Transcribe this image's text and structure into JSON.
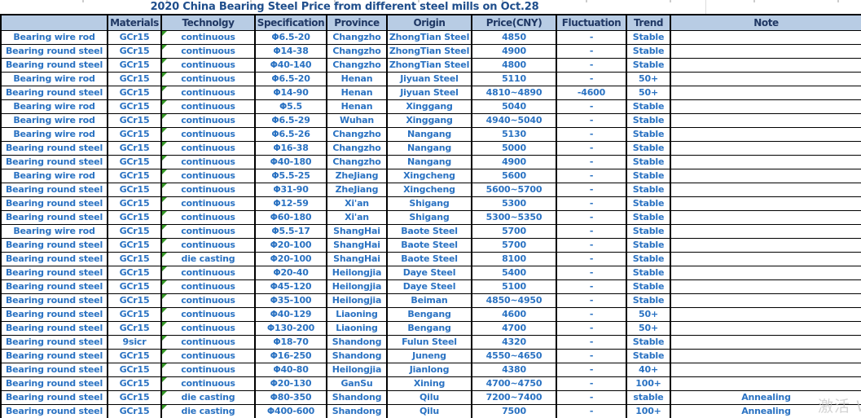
{
  "title": "2020 China Bearing Steel Price from different steel mills on  Oct.28",
  "watermark": "激活 W",
  "colors": {
    "title_text": "#1f4e8c",
    "header_bg": "#b8cce4",
    "header_text": "#203864",
    "data_text": "#2a72c2",
    "border": "#000000",
    "error_triangle": "#379a28"
  },
  "table": {
    "columns": [
      {
        "key": "product",
        "label": ""
      },
      {
        "key": "materials",
        "label": "Materials"
      },
      {
        "key": "technology",
        "label": "Technolgy"
      },
      {
        "key": "specification",
        "label": "Specification"
      },
      {
        "key": "province",
        "label": "Province"
      },
      {
        "key": "origin",
        "label": "Origin"
      },
      {
        "key": "price",
        "label": "Price(CNY)"
      },
      {
        "key": "fluctuation",
        "label": "Fluctuation"
      },
      {
        "key": "trend",
        "label": "Trend"
      },
      {
        "key": "note",
        "label": "Note"
      }
    ],
    "rows": [
      [
        "Bearing wire rod",
        "GCr15",
        "continuous",
        "Φ6.5-20",
        "Changzho",
        "ZhongTian Steel",
        "4850",
        "-",
        "Stable",
        ""
      ],
      [
        "Bearing round steel",
        "GCr15",
        "continuous",
        "Φ14-38",
        "Changzho",
        "ZhongTian Steel",
        "4900",
        "-",
        "Stable",
        ""
      ],
      [
        "Bearing round steel",
        "GCr15",
        "continuous",
        "Φ40-140",
        "Changzho",
        "ZhongTian Steel",
        "4800",
        "-",
        "Stable",
        ""
      ],
      [
        "Bearing wire rod",
        "GCr15",
        "continuous",
        "Φ6.5-20",
        "Henan",
        "Jiyuan Steel",
        "5110",
        "-",
        "50+",
        ""
      ],
      [
        "Bearing round steel",
        "GCr15",
        "continuous",
        "Φ14-90",
        "Henan",
        "Jiyuan Steel",
        "4810~4890",
        "-4600",
        "50+",
        ""
      ],
      [
        "Bearing wire rod",
        "GCr15",
        "continuous",
        "Φ5.5",
        "Henan",
        "Xinggang",
        "5040",
        "-",
        "Stable",
        ""
      ],
      [
        "Bearing wire rod",
        "GCr15",
        "continuous",
        "Φ6.5-29",
        "Wuhan",
        "Xinggang",
        "4940~5040",
        "-",
        "Stable",
        ""
      ],
      [
        "Bearing wire rod",
        "GCr15",
        "continuous",
        "Φ6.5-26",
        "Changzho",
        "Nangang",
        "5130",
        "-",
        "Stable",
        ""
      ],
      [
        "Bearing round steel",
        "GCr15",
        "continuous",
        "Φ16-38",
        "Changzho",
        "Nangang",
        "5000",
        "-",
        "Stable",
        ""
      ],
      [
        "Bearing round steel",
        "GCr15",
        "continuous",
        "Φ40-180",
        "Changzho",
        "Nangang",
        "4900",
        "-",
        "Stable",
        ""
      ],
      [
        "Bearing wire rod",
        "GCr15",
        "continuous",
        "Φ5.5-25",
        "ZheJiang",
        "Xingcheng",
        "5600",
        "-",
        "Stable",
        ""
      ],
      [
        "Bearing round steel",
        "GCr15",
        "continuous",
        "Φ31-90",
        "ZheJiang",
        "Xingcheng",
        "5600~5700",
        "-",
        "Stable",
        ""
      ],
      [
        "Bearing round steel",
        "GCr15",
        "continuous",
        "Φ12-59",
        "Xi'an",
        "Shigang",
        "5300",
        "-",
        "Stable",
        ""
      ],
      [
        "Bearing round steel",
        "GCr15",
        "continuous",
        "Φ60-180",
        "Xi'an",
        "Shigang",
        "5300~5350",
        "-",
        "Stable",
        ""
      ],
      [
        "Bearing wire rod",
        "GCr15",
        "continuous",
        "Φ5.5-17",
        "ShangHai",
        "Baote Steel",
        "5700",
        "-",
        "Stable",
        ""
      ],
      [
        "Bearing round steel",
        "GCr15",
        "continuous",
        "Φ20-100",
        "ShangHai",
        "Baote Steel",
        "5700",
        "-",
        "Stable",
        ""
      ],
      [
        "Bearing round steel",
        "GCr15",
        "die casting",
        "Φ20-100",
        "ShangHai",
        "Baote Steel",
        "8100",
        "-",
        "Stable",
        ""
      ],
      [
        "Bearing round steel",
        "GCr15",
        "continuous",
        "Φ20-40",
        "Heilongjia",
        "Daye Steel",
        "5400",
        "-",
        "Stable",
        ""
      ],
      [
        "Bearing round steel",
        "GCr15",
        "continuous",
        "Φ45-120",
        "Heilongjia",
        "Daye Steel",
        "5100",
        "-",
        "Stable",
        ""
      ],
      [
        "Bearing round steel",
        "GCr15",
        "continuous",
        "Φ35-100",
        "Heilongjia",
        "Beiman",
        "4850~4950",
        "-",
        "Stable",
        ""
      ],
      [
        "Bearing round steel",
        "GCr15",
        "continuous",
        "Φ40-129",
        "Liaoning",
        "Bengang",
        "4600",
        "-",
        "50+",
        ""
      ],
      [
        "Bearing round steel",
        "GCr15",
        "continuous",
        "Φ130-200",
        "Liaoning",
        "Bengang",
        "4700",
        "-",
        "50+",
        ""
      ],
      [
        "Bearing round steel",
        "9sicr",
        "continuous",
        "Φ18-70",
        "Shandong",
        "Fulun Steel",
        "4320",
        "-",
        "Stable",
        ""
      ],
      [
        "Bearing round steel",
        "GCr15",
        "continuous",
        "Φ16-250",
        "Shandong",
        "Juneng",
        "4550~4650",
        "-",
        "Stable",
        ""
      ],
      [
        "Bearing round steel",
        "GCr15",
        "continuous",
        "Φ40-80",
        "Heilongjia",
        "Jianlong",
        "4380",
        "-",
        "40+",
        ""
      ],
      [
        "Bearing round steel",
        "GCr15",
        "continuous",
        "Φ20-130",
        "GanSu",
        "Xining",
        "4700~4750",
        "-",
        "100+",
        ""
      ],
      [
        "Bearing round steel",
        "GCr15",
        "die casting",
        "Φ80-350",
        "Shandong",
        "Qilu",
        "7200~7400",
        "-",
        "stable",
        "Annealing"
      ],
      [
        "Bearing round steel",
        "GCr15",
        "die casting",
        "Φ400-600",
        "Shandong",
        "Qilu",
        "7500",
        "-",
        "100+",
        "Annealing"
      ]
    ]
  }
}
